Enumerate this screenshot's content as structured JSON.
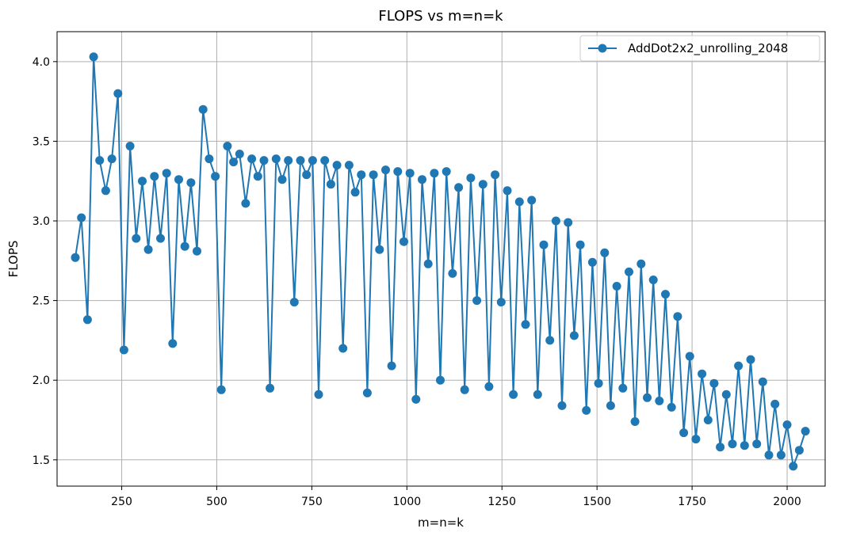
{
  "chart_data": {
    "type": "line",
    "title": "FLOPS vs m=n=k",
    "xlabel": "m=n=k",
    "ylabel": "FLOPS",
    "xlim": [
      80,
      2100
    ],
    "ylim": [
      1.335,
      4.188
    ],
    "xticks": [
      250,
      500,
      750,
      1000,
      1250,
      1500,
      1750,
      2000
    ],
    "xtick_labels": [
      "250",
      "500",
      "750",
      "1000",
      "1250",
      "1500",
      "1750",
      "2000"
    ],
    "yticks": [
      1.5,
      2.0,
      2.5,
      3.0,
      3.5,
      4.0
    ],
    "ytick_labels": [
      "1.5",
      "2.0",
      "2.5",
      "3.0",
      "3.5",
      "4.0"
    ],
    "grid": true,
    "legend_position": "top-right",
    "series": [
      {
        "name": "AddDot2x2_unrolling_2048",
        "color": "#1f77b4",
        "marker": "circle",
        "x": [
          128,
          144,
          160,
          176,
          192,
          208,
          224,
          240,
          256,
          272,
          288,
          304,
          320,
          336,
          352,
          368,
          384,
          400,
          416,
          432,
          448,
          464,
          480,
          496,
          512,
          528,
          544,
          560,
          576,
          592,
          608,
          624,
          640,
          656,
          672,
          688,
          704,
          720,
          736,
          752,
          768,
          784,
          800,
          816,
          832,
          848,
          864,
          880,
          896,
          912,
          928,
          944,
          960,
          976,
          992,
          1008,
          1024,
          1040,
          1056,
          1072,
          1088,
          1104,
          1120,
          1136,
          1152,
          1168,
          1184,
          1200,
          1216,
          1232,
          1248,
          1264,
          1280,
          1296,
          1312,
          1328,
          1344,
          1360,
          1376,
          1392,
          1408,
          1424,
          1440,
          1456,
          1472,
          1488,
          1504,
          1520,
          1536,
          1552,
          1568,
          1584,
          1600,
          1616,
          1632,
          1648,
          1664,
          1680,
          1696,
          1712,
          1728,
          1744,
          1760,
          1776,
          1792,
          1808,
          1824,
          1840,
          1856,
          1872,
          1888,
          1904,
          1920,
          1936,
          1952,
          1968,
          1984,
          2000,
          2016,
          2032,
          2048
        ],
        "y": [
          2.77,
          3.02,
          2.38,
          4.03,
          3.38,
          3.19,
          3.39,
          3.8,
          2.19,
          3.47,
          2.89,
          3.25,
          2.82,
          3.28,
          2.89,
          3.3,
          2.23,
          3.26,
          2.84,
          3.24,
          2.81,
          3.7,
          3.39,
          3.28,
          1.94,
          3.47,
          3.37,
          3.42,
          3.11,
          3.39,
          3.28,
          3.38,
          1.95,
          3.39,
          3.26,
          3.38,
          2.49,
          3.38,
          3.29,
          3.38,
          1.91,
          3.38,
          3.23,
          3.35,
          2.2,
          3.35,
          3.18,
          3.29,
          1.92,
          3.29,
          2.82,
          3.32,
          2.09,
          3.31,
          2.87,
          3.3,
          1.88,
          3.26,
          2.73,
          3.3,
          2.0,
          3.31,
          2.67,
          3.21,
          1.94,
          3.27,
          2.5,
          3.23,
          1.96,
          3.29,
          2.49,
          3.19,
          1.91,
          3.12,
          2.35,
          3.13,
          1.91,
          2.85,
          2.25,
          3.0,
          1.84,
          2.99,
          2.28,
          2.85,
          1.81,
          2.74,
          1.98,
          2.8,
          1.84,
          2.59,
          1.95,
          2.68,
          1.74,
          2.73,
          1.89,
          2.63,
          1.87,
          2.54,
          1.83,
          2.4,
          1.67,
          2.15,
          1.63,
          2.04,
          1.75,
          1.98,
          1.58,
          1.91,
          1.6,
          2.09,
          1.59,
          2.13,
          1.6,
          1.99,
          1.53,
          1.85,
          1.53,
          1.72,
          1.46,
          1.56,
          1.68
        ]
      }
    ]
  }
}
